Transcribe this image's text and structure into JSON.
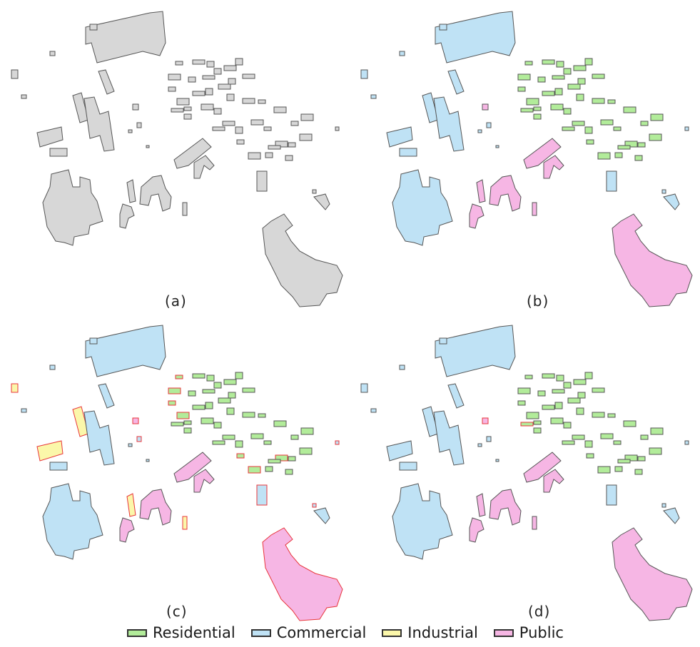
{
  "panels": [
    {
      "id": "a",
      "caption": "(a)",
      "mode": "none"
    },
    {
      "id": "b",
      "caption": "(b)",
      "mode": "truth"
    },
    {
      "id": "c",
      "caption": "(c)",
      "mode": "c"
    },
    {
      "id": "d",
      "caption": "(d)",
      "mode": "d"
    }
  ],
  "legend": [
    {
      "key": "residential",
      "label": "Residential",
      "color": "#b2ec9a"
    },
    {
      "key": "commercial",
      "label": "Commercial",
      "color": "#bfe2f5"
    },
    {
      "key": "industrial",
      "label": "Industrial",
      "color": "#fbf7aa"
    },
    {
      "key": "public",
      "label": "Public",
      "color": "#f6b6e4"
    }
  ],
  "colors": {
    "unclassified": "#d7d7d7",
    "outline": "#555555",
    "error_outline": "#e8353a"
  }
}
